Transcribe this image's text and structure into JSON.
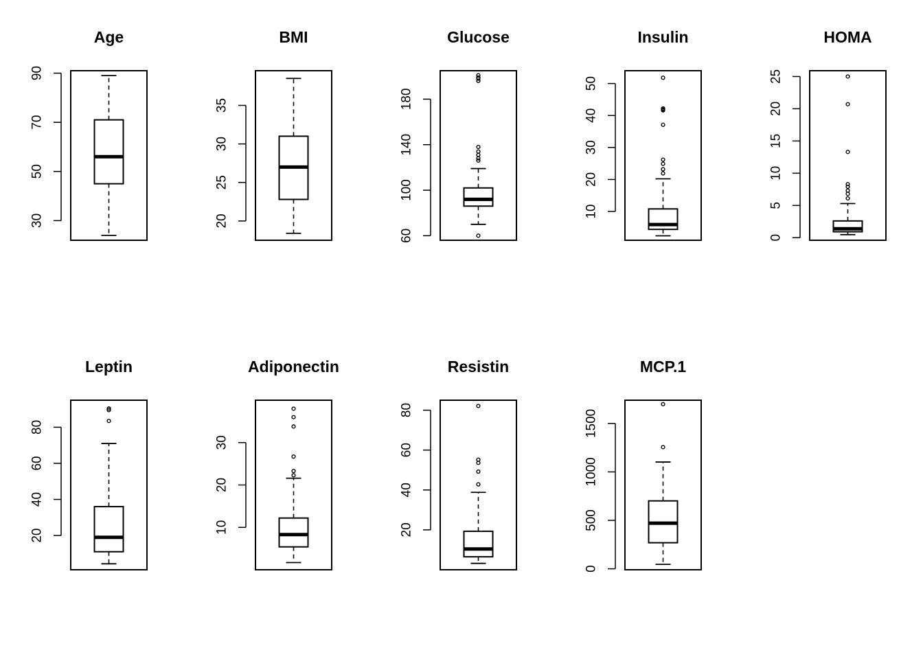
{
  "chart_data": [
    {
      "type": "boxplot",
      "title": "Age",
      "ylim": [
        22,
        91
      ],
      "yticks": [
        30,
        50,
        70,
        90
      ],
      "min": 24,
      "q1": 45,
      "median": 56,
      "q3": 71,
      "max": 89,
      "outliers": []
    },
    {
      "type": "boxplot",
      "title": "BMI",
      "ylim": [
        17.5,
        39.5
      ],
      "yticks": [
        20,
        25,
        30,
        35
      ],
      "min": 18.4,
      "q1": 22.8,
      "median": 27,
      "q3": 31,
      "max": 38.5,
      "outliers": []
    },
    {
      "type": "boxplot",
      "title": "Glucose",
      "ylim": [
        56,
        205
      ],
      "yticks": [
        60,
        100,
        140,
        180
      ],
      "min": 70,
      "q1": 86,
      "median": 92,
      "q3": 102,
      "max": 119,
      "outliers": [
        60,
        126,
        128,
        131,
        134,
        138,
        196,
        198,
        199,
        201
      ]
    },
    {
      "type": "boxplot",
      "title": "Insulin",
      "ylim": [
        1,
        54
      ],
      "yticks": [
        10,
        20,
        30,
        40,
        50
      ],
      "min": 2.4,
      "q1": 4.4,
      "median": 5.9,
      "q3": 10.8,
      "max": 20.2,
      "outliers": [
        21.9,
        23.2,
        24.9,
        26.2,
        37.1,
        41.6,
        41.9,
        42.2,
        51.8
      ]
    },
    {
      "type": "boxplot",
      "title": "HOMA",
      "ylim": [
        -0.4,
        25.9
      ],
      "yticks": [
        0,
        5,
        10,
        15,
        20,
        25
      ],
      "min": 0.47,
      "q1": 0.92,
      "median": 1.38,
      "q3": 2.6,
      "max": 5.3,
      "outliers": [
        6.1,
        6.8,
        7.3,
        7.9,
        8.3,
        13.3,
        20.7,
        25
      ]
    },
    {
      "type": "boxplot",
      "title": "Leptin",
      "ylim": [
        1,
        95
      ],
      "yticks": [
        20,
        40,
        60,
        80
      ],
      "min": 4.3,
      "q1": 11,
      "median": 19,
      "q3": 36,
      "max": 71,
      "outliers": [
        83.5,
        89.5,
        90.3,
        90.4
      ]
    },
    {
      "type": "boxplot",
      "title": "Adiponectin",
      "ylim": [
        0,
        40
      ],
      "yticks": [
        10,
        20,
        30
      ],
      "min": 1.7,
      "q1": 5.4,
      "median": 8.3,
      "q3": 12.2,
      "max": 21.6,
      "outliers": [
        22.3,
        23.3,
        26.7,
        33.8,
        36,
        38
      ]
    },
    {
      "type": "boxplot",
      "title": "Resistin",
      "ylim": [
        0,
        85
      ],
      "yticks": [
        20,
        40,
        60,
        80
      ],
      "min": 3.2,
      "q1": 6.5,
      "median": 10.4,
      "q3": 19.3,
      "max": 38.8,
      "outliers": [
        42.8,
        49.2,
        53.6,
        55.2,
        82.1
      ]
    },
    {
      "type": "boxplot",
      "title": "MCP.1",
      "ylim": [
        -10,
        1740
      ],
      "yticks": [
        0,
        500,
        1000,
        1500
      ],
      "min": 45.8,
      "q1": 269,
      "median": 471,
      "q3": 701,
      "max": 1102,
      "outliers": [
        1256,
        1699
      ]
    }
  ]
}
